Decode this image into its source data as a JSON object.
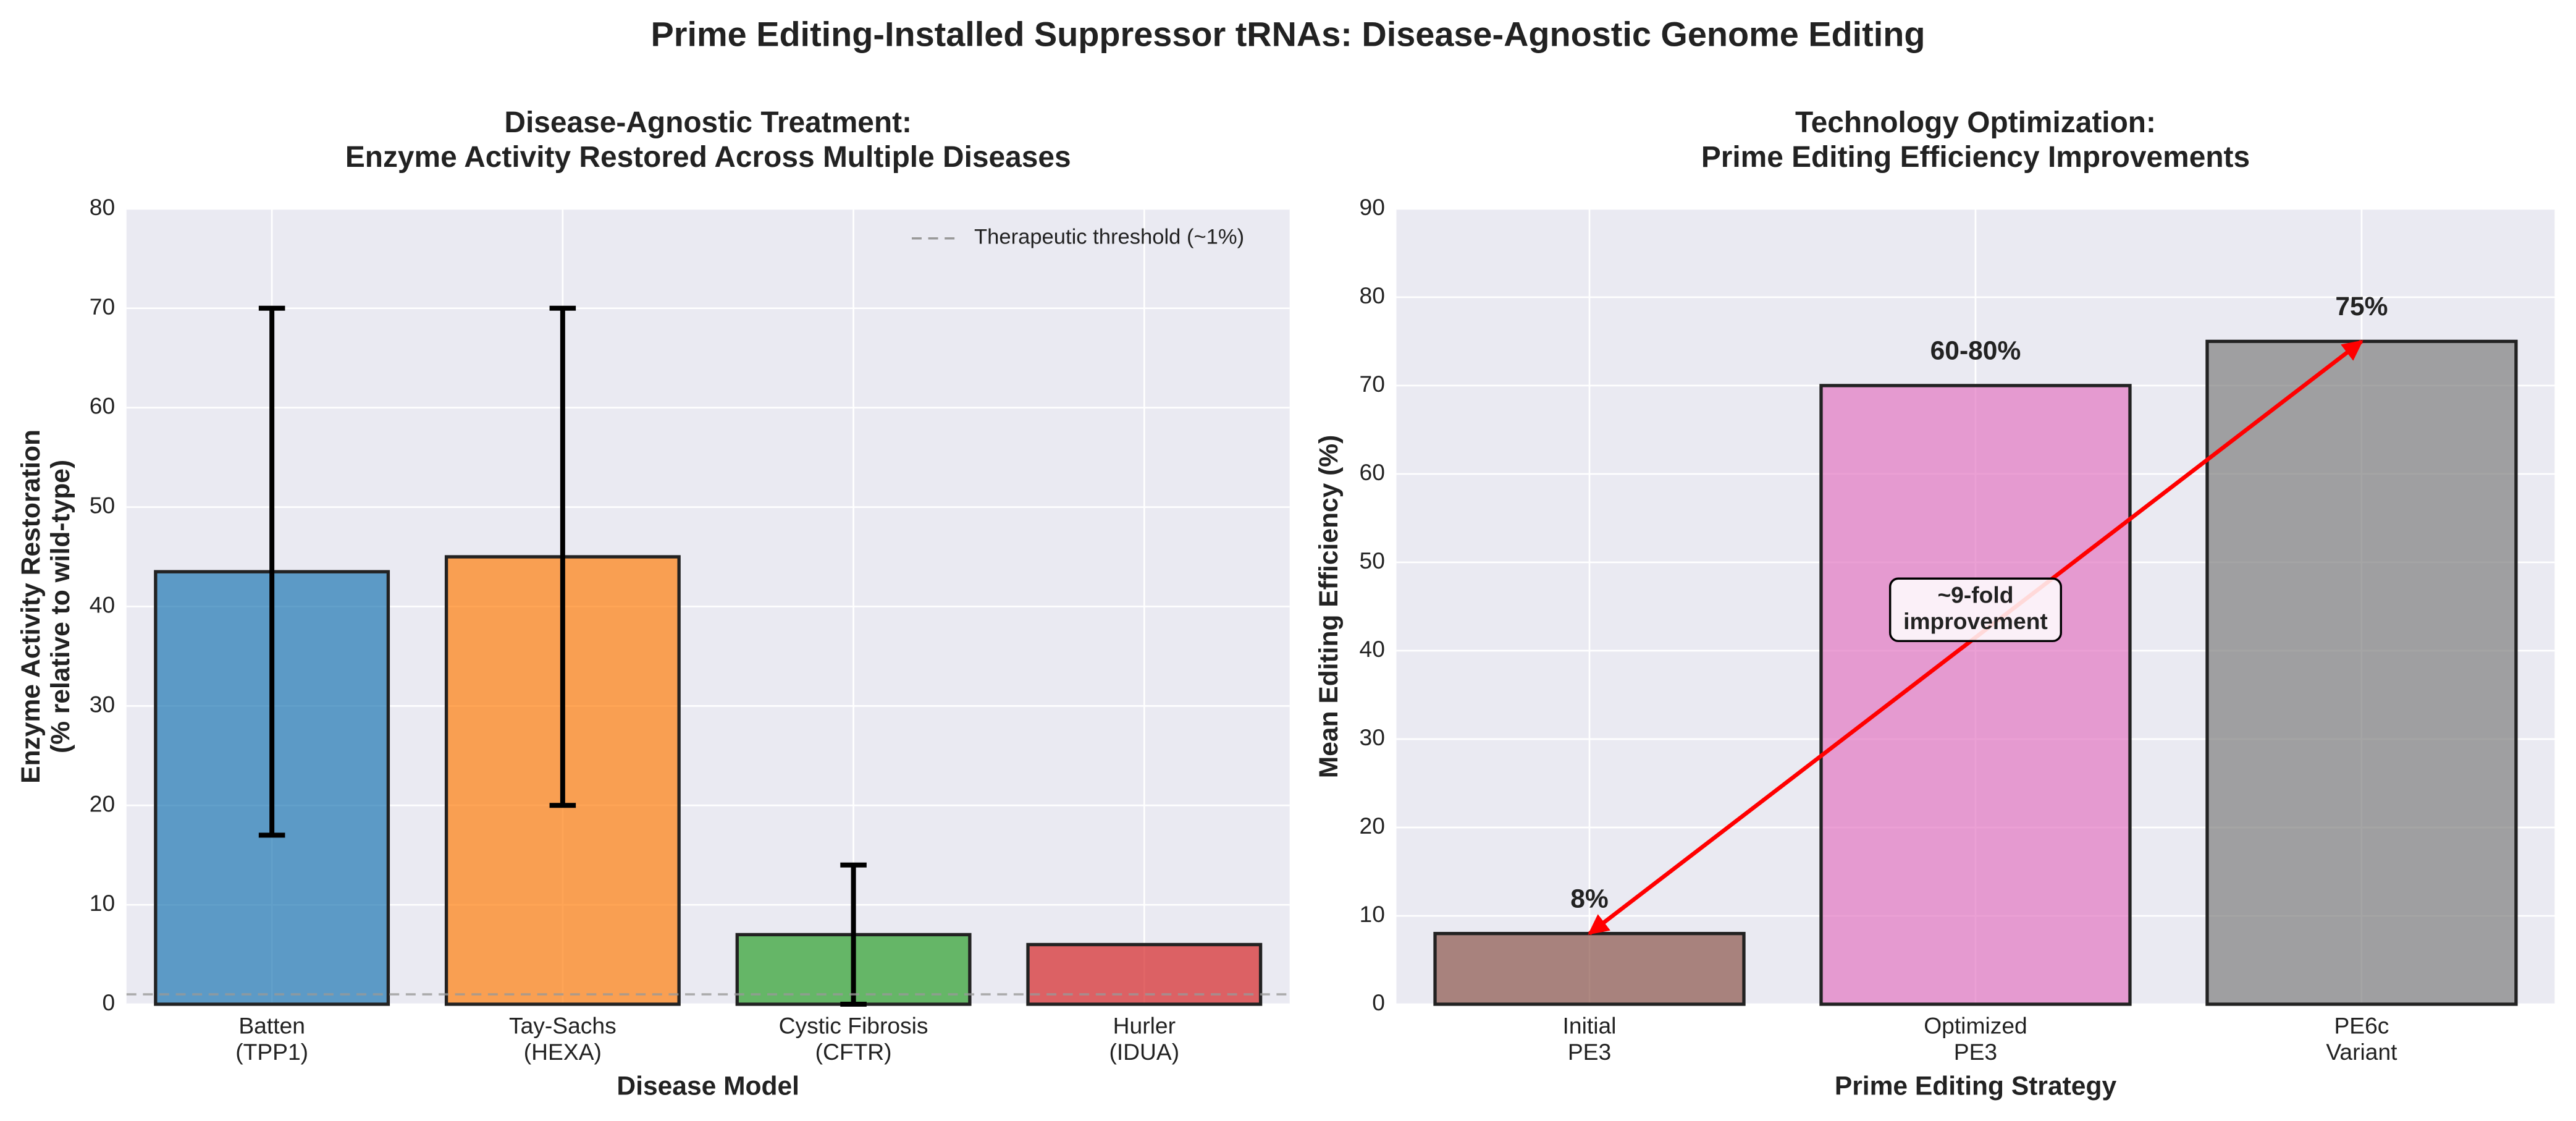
{
  "title": "Prime Editing-Installed Suppressor tRNAs: Disease-Agnostic Genome Editing",
  "chart_data": [
    {
      "type": "bar",
      "title": "Disease-Agnostic Treatment:\nEnzyme Activity Restored Across Multiple Diseases",
      "x_label": "Disease Model",
      "y_label": "Enzyme Activity Restoration\n(% relative to wild-type)",
      "categories": [
        "Batten\n(TPP1)",
        "Tay-Sachs\n(HEXA)",
        "Cystic Fibrosis\n(CFTR)",
        "Hurler\n(IDUA)"
      ],
      "values": [
        43.5,
        45,
        7,
        6
      ],
      "errors": [
        26.5,
        25,
        7,
        null
      ],
      "colors": [
        "#1f77b4",
        "#ff7f0e",
        "#2ca02c",
        "#d62728"
      ],
      "ylim": [
        0,
        80
      ],
      "yticks": [
        0,
        10,
        20,
        30,
        40,
        50,
        60,
        70,
        80
      ],
      "grid": true,
      "reference_line": {
        "value": 1,
        "label": "Therapeutic threshold (~1%)"
      },
      "legend": "upper right"
    },
    {
      "type": "bar",
      "title": "Technology Optimization:\nPrime Editing Efficiency Improvements",
      "x_label": "Prime Editing Strategy",
      "y_label": "Mean Editing Efficiency (%)",
      "categories": [
        "Initial\nPE3",
        "Optimized\nPE3",
        "PE6c\nVariant"
      ],
      "values": [
        8,
        70,
        75
      ],
      "value_labels": [
        "8%",
        "60-80%",
        "75%"
      ],
      "colors": [
        "#8c564b",
        "#e377c2",
        "#7f7f7f"
      ],
      "ylim": [
        0,
        90
      ],
      "yticks": [
        0,
        10,
        20,
        30,
        40,
        50,
        60,
        70,
        80,
        90
      ],
      "grid": true,
      "annotation": {
        "text": "~9-fold\nimprovement",
        "color": "#ff0000"
      }
    }
  ]
}
